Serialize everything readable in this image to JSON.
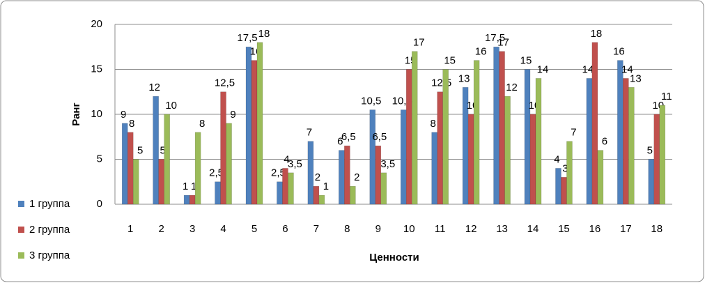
{
  "chart_data": {
    "type": "bar",
    "ylabel": "Ранг",
    "xlabel": "Ценности",
    "categories": [
      "1",
      "2",
      "3",
      "4",
      "5",
      "6",
      "7",
      "8",
      "9",
      "10",
      "11",
      "12",
      "13",
      "14",
      "15",
      "16",
      "17",
      "18"
    ],
    "series": [
      {
        "name": "1 группа",
        "color": "#4f81bd",
        "values": [
          9,
          12,
          1,
          2.5,
          17.5,
          2.5,
          7,
          6,
          10.5,
          10.5,
          8,
          13,
          17.5,
          15,
          4,
          14,
          16,
          5
        ],
        "value_labels": [
          "9",
          "12",
          "1",
          "2,5",
          "17,5",
          "2,5",
          "7",
          "6",
          "10,5",
          "10,5",
          "8",
          "13",
          "17,5",
          "15",
          "4",
          "14",
          "16",
          "5"
        ]
      },
      {
        "name": "2 группа",
        "color": "#c0504d",
        "values": [
          8,
          5,
          1,
          12.5,
          16,
          4,
          2,
          6.5,
          6.5,
          15,
          12.5,
          10,
          17,
          10,
          3,
          18,
          14,
          10
        ],
        "value_labels": [
          "8",
          "5",
          "1",
          "12,5",
          "16",
          "4",
          "2",
          "6,5",
          "6,5",
          "15",
          "12,5",
          "10",
          "17",
          "10",
          "3",
          "18",
          "14",
          "10"
        ]
      },
      {
        "name": "3 группа",
        "color": "#9bbb59",
        "values": [
          5,
          10,
          8,
          9,
          18,
          3.5,
          1,
          2,
          3.5,
          17,
          15,
          16,
          12,
          14,
          7,
          6,
          13,
          11
        ],
        "value_labels": [
          "5",
          "10",
          "8",
          "9",
          "18",
          "3,5",
          "1",
          "2",
          "3,5",
          "17",
          "15",
          "16",
          "12",
          "14",
          "7",
          "6",
          "13",
          "11"
        ]
      }
    ],
    "ylim": [
      0,
      20
    ],
    "yticks": [
      0,
      5,
      10,
      15,
      20
    ],
    "grid": true,
    "legend": "left"
  }
}
